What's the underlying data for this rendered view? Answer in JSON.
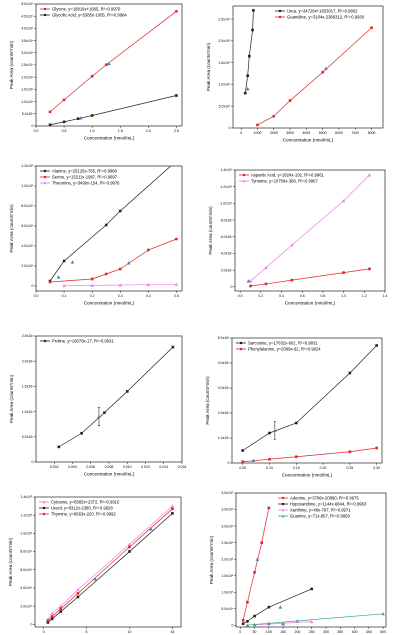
{
  "chart_data": [
    {
      "type": "scatter",
      "xlabel": "Concentration (nmol/mL)",
      "ylabel": "Peak Area (counts*min)",
      "xlim": [
        0,
        2.6
      ],
      "ylim": [
        0,
        50000
      ],
      "xticks": [
        0.0,
        0.5,
        1.0,
        1.5,
        2.0,
        2.5
      ],
      "xtick_labels": [
        "0.0",
        "0.5",
        "1.0",
        "1.5",
        "2.0",
        "2.5"
      ],
      "yticks": [
        0,
        5000,
        10000,
        15000,
        20000,
        25000,
        30000,
        35000,
        40000,
        45000,
        50000
      ],
      "ytick_labels": [
        "0",
        "5.0x10³",
        "1.0x10⁴",
        "1.5x10⁴",
        "2.0x10⁴",
        "2.5x10⁴",
        "3.0x10⁴",
        "3.5x10⁴",
        "4.0x10⁴",
        "4.5x10⁴",
        "5.0x10⁴"
      ],
      "legend_position": "top-left",
      "series": [
        {
          "name": "Glycine, y=18816x+1665, R²=0.9970",
          "color": "#e3262a",
          "marker": "square",
          "x": [
            0.25,
            0.5,
            1.0,
            1.25,
            2.5
          ],
          "y": [
            5800,
            10700,
            20400,
            25100,
            47000
          ]
        },
        {
          "name": "Glycolic Acid, y=5385x-1005, R²=0.9984",
          "color": "#222222",
          "marker": "square",
          "x": [
            0.25,
            0.5,
            0.75,
            1.0,
            2.5
          ],
          "y": [
            500,
            1700,
            3000,
            4300,
            12500
          ]
        }
      ],
      "highlights": [
        {
          "x": 0.8,
          "y": 3300,
          "color": "#3d7fc4"
        },
        {
          "x": 1.3,
          "y": 25600,
          "color": "#3d7fc4"
        }
      ]
    },
    {
      "type": "scatter",
      "xlabel": "Concentration (nmol/mL)",
      "ylabel": "Peak Area (counts*min)",
      "xlim": [
        -500,
        8700
      ],
      "ylim": [
        0,
        280000000
      ],
      "xticks": [
        0,
        1000,
        2000,
        3000,
        4000,
        5000,
        6000,
        7000,
        8000
      ],
      "xtick_labels": [
        "0",
        "1000",
        "2000",
        "3000",
        "4000",
        "5000",
        "6000",
        "7000",
        "8000"
      ],
      "yticks": [
        0,
        50000000,
        100000000,
        150000000,
        200000000,
        250000000
      ],
      "ytick_labels": [
        "0",
        "5.0x10⁷",
        "1.0x10⁸",
        "1.5x10⁸",
        "2.0x10⁸",
        "2.5x10⁸"
      ],
      "legend_position": "top-right",
      "series": [
        {
          "name": "Urea, y=34728x+1833017, R²=0.9802",
          "color": "#222222",
          "marker": "square",
          "x": [
            250,
            400,
            500,
            700,
            750
          ],
          "y": [
            80000000,
            120000000,
            165000000,
            225000000,
            270000000
          ]
        },
        {
          "name": "Guanidine, y=3104x-2388312, R²=0.9930",
          "color": "#e3262a",
          "marker": "square",
          "x": [
            1000,
            2000,
            3000,
            5000,
            8000
          ],
          "y": [
            7000000,
            27000000,
            63000000,
            128000000,
            230000000
          ]
        }
      ],
      "highlights": [
        {
          "x": 400,
          "y": 90000000,
          "color": "#3d7fc4"
        },
        {
          "x": 5200,
          "y": 137000000,
          "color": "#3d7fc4"
        }
      ]
    },
    {
      "type": "scatter",
      "xlabel": "Concentration (nmol/mL)",
      "ylabel": "Peak Area (counts*min)",
      "xlim": [
        0,
        0.52
      ],
      "ylim": [
        -5000,
        120000
      ],
      "xticks": [
        0.0,
        0.1,
        0.2,
        0.3,
        0.4,
        0.5
      ],
      "xtick_labels": [
        "0.0",
        "0.1",
        "0.2",
        "0.3",
        "0.4",
        "0.5"
      ],
      "yticks": [
        0,
        20000,
        40000,
        60000,
        80000,
        100000,
        120000
      ],
      "ytick_labels": [
        "0",
        "2.0x10⁴",
        "4.0x10⁴",
        "6.0x10⁴",
        "8.0x10⁴",
        "1.0x10⁵",
        "1.2x10⁵"
      ],
      "legend_position": "top-left",
      "series": [
        {
          "name": "Alanine, y=25125x-765, R²=0.9980",
          "color": "#222222",
          "marker": "square",
          "x": [
            0.05,
            0.1,
            0.25,
            0.3,
            0.5
          ],
          "y": [
            500,
            2500,
            6100,
            7500,
            12500
          ]
        },
        {
          "name": "Serine, y=13211x-1987, R²=0.9897",
          "color": "#e3262a",
          "marker": "square",
          "x": [
            0.05,
            0.2,
            0.25,
            0.3,
            0.4,
            0.5
          ],
          "y": [
            400,
            700,
            1200,
            1700,
            3600,
            4700
          ]
        },
        {
          "name": "Threonine, y=3490x-154, R²=0.9976",
          "color": "#f07ae8",
          "marker": "triangle",
          "x": [
            0.1,
            0.2,
            0.3,
            0.4,
            0.5
          ],
          "y": [
            300,
            600,
            1000,
            1300,
            1700
          ]
        }
      ],
      "series_scale": 10,
      "highlights": [
        {
          "x": 0.08,
          "y": 900,
          "color": "#3d7fc4"
        },
        {
          "x": 0.13,
          "y": 2400,
          "color": "#3d7fc4"
        },
        {
          "x": 0.33,
          "y": 2300,
          "color": "#3d7fc4"
        }
      ]
    },
    {
      "type": "scatter",
      "xlabel": "Concentration (nmol/mL)",
      "ylabel": "Peak Area (counts*min)",
      "xlim": [
        -0.05,
        1.4
      ],
      "ylim": [
        -500,
        14000
      ],
      "xticks": [
        0.0,
        0.2,
        0.4,
        0.6,
        0.8,
        1.0,
        1.2,
        1.4
      ],
      "xtick_labels": [
        "0.0",
        "0.2",
        "0.4",
        "0.6",
        "0.8",
        "1.0",
        "1.2",
        "1.4"
      ],
      "yticks": [
        0,
        2000,
        4000,
        6000,
        8000,
        10000,
        12000,
        14000
      ],
      "ytick_labels": [
        "0",
        "2.0x10³",
        "4.0x10³",
        "6.0x10³",
        "8.0x10³",
        "1.0x10⁴",
        "1.2x10⁴",
        "1.4x10⁴"
      ],
      "legend_position": "top-left",
      "series": [
        {
          "name": "Aspartic Acid, y=1824x-102, R²=0.9961",
          "color": "#e3262a",
          "marker": "square",
          "x": [
            0.1,
            0.25,
            0.5,
            1.0,
            1.25
          ],
          "y": [
            100,
            350,
            800,
            1700,
            2150
          ]
        },
        {
          "name": "Tyrosine, y=10709x-386, R²=0.9967",
          "color": "#f07ae8",
          "marker": "triangle",
          "x": [
            0.1,
            0.25,
            0.5,
            1.0,
            1.25
          ],
          "y": [
            700,
            2300,
            5000,
            10300,
            13400
          ]
        }
      ],
      "highlights": [
        {
          "x": 0.08,
          "y": 700,
          "color": "#3d7fc4"
        }
      ]
    },
    {
      "type": "scatter",
      "xlabel": "Concentration (nmol/mL)",
      "ylabel": "Peak Area (counts*min)",
      "xlim": [
        0,
        0.016
      ],
      "ylim": [
        0,
        250
      ],
      "xticks": [
        0.002,
        0.004,
        0.006,
        0.008,
        0.01,
        0.012,
        0.014,
        0.016
      ],
      "xtick_labels": [
        "0.002",
        "0.004",
        "0.006",
        "0.008",
        "0.010",
        "0.012",
        "0.014",
        "0.016"
      ],
      "yticks": [
        0,
        50,
        100,
        150,
        200,
        250
      ],
      "ytick_labels": [
        "0",
        "5.0x10¹",
        "1.0x10²",
        "1.5x10²",
        "2.0x10²",
        "2.5x10²"
      ],
      "legend_position": "top-left",
      "series": [
        {
          "name": "Proline, y=16078x-17, R²=0.9931",
          "color": "#222222",
          "marker": "square",
          "x": [
            0.0025,
            0.005,
            0.0075,
            0.01,
            0.015
          ],
          "y": [
            30,
            57,
            98,
            140,
            228
          ]
        }
      ],
      "highlights": [
        {
          "x": 0.0069,
          "y": 90,
          "color": "#3d7fc4",
          "error": 18
        }
      ]
    },
    {
      "type": "scatter",
      "xlabel": "Concentration (nmol/mL)",
      "ylabel": "Peak Area (counts*min)",
      "xlim": [
        0.03,
        0.31
      ],
      "ylim": [
        0,
        5000
      ],
      "xticks": [
        0.05,
        0.1,
        0.15,
        0.2,
        0.25,
        0.3
      ],
      "xtick_labels": [
        "0.05",
        "0.10",
        "0.15",
        "0.20",
        "0.25",
        "0.30"
      ],
      "yticks": [
        0,
        1000,
        2000,
        3000,
        4000,
        5000
      ],
      "ytick_labels": [
        "0",
        "1.0x10³",
        "2.0x10³",
        "3.0x10³",
        "4.0x10³",
        "5.0x10³"
      ],
      "legend_position": "top-left",
      "series": [
        {
          "name": "Sarcosine, y=17032x-601, R²=0.9831",
          "color": "#222222",
          "marker": "square",
          "x": [
            0.05,
            0.1,
            0.15,
            0.25,
            0.3
          ],
          "y": [
            500,
            1200,
            1600,
            3600,
            4700
          ]
        },
        {
          "name": "Phenylalanine, y=2069x-62, R²=0.9824",
          "color": "#e3262a",
          "marker": "square",
          "x": [
            0.05,
            0.1,
            0.15,
            0.25,
            0.3
          ],
          "y": [
            50,
            150,
            250,
            450,
            600
          ]
        }
      ],
      "highlights": [
        {
          "x": 0.07,
          "y": 100,
          "color": "#3d7fc4"
        },
        {
          "x": 0.11,
          "y": 1300,
          "color": "#3d7fc4",
          "error": 350
        }
      ]
    },
    {
      "type": "scatter",
      "xlabel": "Concentration (nmol/mL)",
      "ylabel": "Peak Area (counts*min)",
      "xlim": [
        -1,
        16
      ],
      "ylim": [
        -3000,
        140000
      ],
      "xticks": [
        0,
        5,
        10,
        15
      ],
      "xtick_labels": [
        "0",
        "5",
        "10",
        "15"
      ],
      "yticks": [
        0,
        20000,
        40000,
        60000,
        80000,
        100000,
        120000,
        140000
      ],
      "ytick_labels": [
        "0",
        "2.0x10⁴",
        "4.0x10⁴",
        "6.0x10⁴",
        "8.0x10⁴",
        "1.0x10⁵",
        "1.2x10⁵",
        "1.4x10⁵"
      ],
      "legend_position": "top-left",
      "series": [
        {
          "name": "Cytosine, y=8565x+2372, R²=0.9915",
          "color": "#f07ae8",
          "marker": "triangle",
          "x": [
            0.5,
            1,
            2,
            4,
            10,
            15
          ],
          "y": [
            5000,
            12000,
            20000,
            38000,
            88000,
            130000
          ]
        },
        {
          "name": "Uracil, y=8312x-2360, R²=0.9928",
          "color": "#222222",
          "marker": "square",
          "x": [
            0.5,
            1,
            2,
            4,
            10,
            15
          ],
          "y": [
            2000,
            6000,
            14000,
            30000,
            80000,
            122000
          ]
        },
        {
          "name": "Thymine, y=8563x-220, R²=0.9992",
          "color": "#e3262a",
          "marker": "square",
          "x": [
            0.5,
            1,
            2,
            4,
            10,
            15
          ],
          "y": [
            4000,
            8500,
            17000,
            34000,
            85000,
            127000
          ]
        }
      ],
      "highlights": [
        {
          "x": 6,
          "y": 50000,
          "color": "#3d7fc4"
        },
        {
          "x": 12.5,
          "y": 105000,
          "color": "#3d7fc4"
        }
      ]
    },
    {
      "type": "scatter",
      "xlabel": "Concentration (nmol/mL)",
      "ylabel": "Peak Area (counts*min)",
      "xlim": [
        -15,
        510
      ],
      "ylim": [
        -5000,
        400000
      ],
      "xticks": [
        0,
        50,
        100,
        150,
        200,
        250,
        300,
        350,
        400,
        450,
        500
      ],
      "xtick_labels": [
        "0",
        "50",
        "100",
        "150",
        "200",
        "250",
        "300",
        "350",
        "400",
        "450",
        "500"
      ],
      "yticks": [
        0,
        50000,
        100000,
        150000,
        200000,
        250000,
        300000,
        350000,
        400000
      ],
      "ytick_labels": [
        "0",
        "5.0x10⁴",
        "1.0x10⁵",
        "1.5x10⁵",
        "2.0x10⁵",
        "2.5x10⁵",
        "3.0x10⁵",
        "3.5x10⁵",
        "4.0x10⁵"
      ],
      "legend_position": "top-right",
      "series": [
        {
          "name": "Adenine, y=3706x-20890, R²=0.9975",
          "color": "#e3262a",
          "marker": "square",
          "x": [
            10,
            25,
            50,
            75,
            100
          ],
          "y": [
            15000,
            70000,
            160000,
            250000,
            355000
          ]
        },
        {
          "name": "Hypoxanthine, y=1144x-6844, R²=0.9963",
          "color": "#222222",
          "marker": "square",
          "x": [
            10,
            25,
            50,
            100,
            250
          ],
          "y": [
            5000,
            12000,
            28000,
            55000,
            110000
          ]
        },
        {
          "name": "Xanthine, y=48x-787, R²=0.9971",
          "color": "#f07ae8",
          "marker": "triangle",
          "x": [
            50,
            100,
            150,
            250
          ],
          "y": [
            1600,
            3800,
            6400,
            11200
          ]
        },
        {
          "name": "Guanine, y=71x-857, R²=0.9959",
          "color": "#3aaa6f",
          "marker": "triangle",
          "x": [
            25,
            50,
            100,
            200,
            500
          ],
          "y": [
            1000,
            2800,
            6200,
            13400,
            34700
          ]
        }
      ],
      "highlights": [
        {
          "x": 60,
          "y": 200000,
          "color": "#3d7fc4"
        },
        {
          "x": 140,
          "y": 55000,
          "color": "#3d7fc4"
        },
        {
          "x": 150,
          "y": 4000,
          "color": "#3d7fc4"
        }
      ]
    }
  ]
}
